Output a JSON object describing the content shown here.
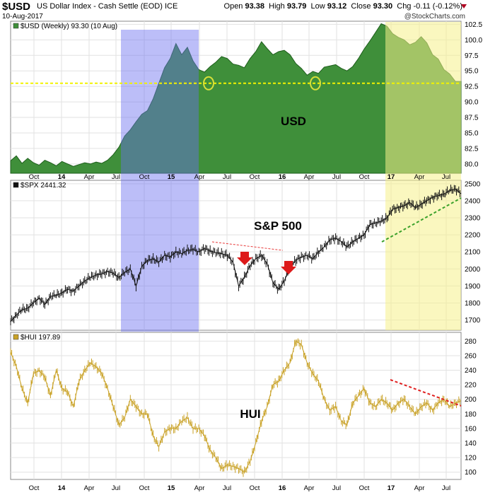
{
  "header": {
    "symbol": "$USD",
    "description": "US Dollar Index - Cash Settle (EOD) ICE",
    "date": "10-Aug-2017",
    "open_label": "Open",
    "open": "93.38",
    "high_label": "High",
    "high": "93.79",
    "low_label": "Low",
    "low": "93.12",
    "close_label": "Close",
    "close": "93.30",
    "chg_label": "Chg",
    "chg": "-0.11 (-0.12%)",
    "brand": "@StockCharts.com",
    "chg_color": "#b00020"
  },
  "chart_data": [
    {
      "type": "area",
      "panel_legend": "$USD (Weekly) 93.30 (10 Aug)",
      "annotation": "USD",
      "ylim": [
        78.5,
        103
      ],
      "y_ticks": [
        "102.5",
        "100.0",
        "97.5",
        "95.0",
        "92.5",
        "90.0",
        "87.5",
        "85.0",
        "82.5",
        "80.0"
      ],
      "y_tick_values": [
        102.5,
        100.0,
        97.5,
        95.0,
        92.5,
        90.0,
        87.5,
        85.0,
        82.5,
        80.0
      ],
      "x_ticks": [
        "Oct",
        "14",
        "Apr",
        "Jul",
        "Oct",
        "15",
        "Apr",
        "Jul",
        "Oct",
        "16",
        "Apr",
        "Jul",
        "Oct",
        "17",
        "Apr",
        "Jul"
      ],
      "support_level": 93.0,
      "highlights": [
        "Jul 2014 - Apr 2015",
        "Dec 2016 - Aug 2017"
      ],
      "circled_lows": [
        "May 2015",
        "May 2016"
      ],
      "series": [
        {
          "name": "USD weekly close",
          "x": [
            0,
            3,
            6,
            9,
            12,
            15,
            18,
            21,
            24,
            27,
            30,
            33,
            36,
            39,
            42,
            45,
            48,
            51,
            54,
            57,
            60,
            63,
            66,
            69,
            72,
            75,
            78,
            81,
            84,
            87,
            90,
            93,
            96,
            99,
            102,
            105,
            108,
            111,
            114,
            117,
            120,
            123,
            126,
            129,
            132,
            135,
            138,
            141,
            144,
            147,
            150,
            153,
            156,
            159,
            162,
            165,
            168,
            171,
            174,
            177,
            180,
            183,
            186,
            189,
            192,
            195,
            198,
            201,
            204,
            207,
            210,
            213,
            216,
            219,
            222,
            225,
            228,
            231,
            234,
            237
          ],
          "values": [
            80.5,
            81.3,
            80.1,
            80.9,
            80.2,
            79.8,
            80.6,
            80.2,
            79.7,
            80.4,
            80.0,
            79.6,
            79.9,
            80.2,
            80.0,
            80.3,
            80.1,
            80.6,
            81.5,
            82.7,
            84.5,
            85.5,
            86.8,
            88.0,
            88.6,
            90.5,
            93.0,
            95.5,
            97.0,
            99.4,
            97.6,
            98.8,
            96.6,
            95.2,
            94.8,
            95.7,
            96.4,
            97.3,
            97.0,
            96.1,
            95.9,
            95.5,
            97.0,
            98.1,
            99.7,
            98.6,
            97.6,
            98.1,
            98.3,
            97.6,
            96.2,
            95.4,
            94.3,
            94.9,
            94.6,
            95.6,
            95.8,
            96.0,
            95.4,
            95.0,
            95.7,
            97.0,
            98.5,
            99.8,
            101.2,
            102.6,
            102.2,
            101.0,
            100.4,
            100.0,
            99.2,
            99.6,
            100.5,
            99.5,
            97.6,
            96.9,
            95.2,
            94.5,
            93.3,
            93.3
          ]
        }
      ]
    },
    {
      "type": "line",
      "panel_legend": "$SPX 2441.32",
      "annotation": "S&P 500",
      "ylim": [
        1640,
        2520
      ],
      "y_ticks": [
        "2500",
        "2400",
        "2300",
        "2200",
        "2100",
        "2000",
        "1900",
        "1800",
        "1700"
      ],
      "y_tick_values": [
        2500,
        2400,
        2300,
        2200,
        2100,
        2000,
        1900,
        1800,
        1700
      ],
      "series": [
        {
          "name": "S&P 500",
          "x": [
            0,
            3,
            6,
            9,
            12,
            15,
            18,
            21,
            24,
            27,
            30,
            33,
            36,
            39,
            42,
            45,
            48,
            51,
            54,
            57,
            60,
            63,
            66,
            69,
            72,
            75,
            78,
            81,
            84,
            87,
            90,
            93,
            96,
            99,
            102,
            105,
            108,
            111,
            114,
            117,
            120,
            123,
            126,
            129,
            132,
            135,
            138,
            141,
            144,
            147,
            150,
            153,
            156,
            159,
            162,
            165,
            168,
            171,
            174,
            177,
            180,
            183,
            186,
            189,
            192,
            195,
            198,
            201,
            204,
            207,
            210,
            213,
            216,
            219,
            222,
            225,
            228,
            231,
            234,
            237
          ],
          "values": [
            1690,
            1730,
            1760,
            1770,
            1800,
            1830,
            1790,
            1840,
            1845,
            1860,
            1880,
            1870,
            1900,
            1930,
            1950,
            1965,
            1970,
            1985,
            1975,
            1950,
            1980,
            2000,
            1900,
            2015,
            2050,
            2060,
            2040,
            2080,
            2070,
            2100,
            2090,
            2110,
            2115,
            2100,
            2120,
            2105,
            2095,
            2090,
            2080,
            2040,
            1900,
            1950,
            2020,
            2060,
            2080,
            2030,
            1920,
            1880,
            1930,
            2010,
            2050,
            2070,
            2080,
            2060,
            2100,
            2130,
            2170,
            2180,
            2160,
            2130,
            2160,
            2180,
            2200,
            2260,
            2270,
            2280,
            2300,
            2350,
            2360,
            2370,
            2390,
            2360,
            2380,
            2400,
            2420,
            2430,
            2440,
            2460,
            2470,
            2441
          ]
        }
      ]
    },
    {
      "type": "line",
      "panel_legend": "$HUI 197.89",
      "annotation": "HUI",
      "ylim": [
        90,
        292
      ],
      "y_ticks": [
        "280",
        "260",
        "240",
        "220",
        "200",
        "180",
        "160",
        "140",
        "120",
        "100"
      ],
      "y_tick_values": [
        280,
        260,
        240,
        220,
        200,
        180,
        160,
        140,
        120,
        100
      ],
      "x_ticks": [
        "Oct",
        "14",
        "Apr",
        "Jul",
        "Oct",
        "15",
        "Apr",
        "Jul",
        "Oct",
        "16",
        "Apr",
        "Jul",
        "Oct",
        "17",
        "Apr",
        "Jul"
      ],
      "series": [
        {
          "name": "HUI",
          "x": [
            0,
            3,
            6,
            9,
            12,
            15,
            18,
            21,
            24,
            27,
            30,
            33,
            36,
            39,
            42,
            45,
            48,
            51,
            54,
            57,
            60,
            63,
            66,
            69,
            72,
            75,
            78,
            81,
            84,
            87,
            90,
            93,
            96,
            99,
            102,
            105,
            108,
            111,
            114,
            117,
            120,
            123,
            126,
            129,
            132,
            135,
            138,
            141,
            144,
            147,
            150,
            153,
            156,
            159,
            162,
            165,
            168,
            171,
            174,
            177,
            180,
            183,
            186,
            189,
            192,
            195,
            198,
            201,
            204,
            207,
            210,
            213,
            216,
            219,
            222,
            225,
            228,
            231,
            234,
            237
          ],
          "values": [
            265,
            245,
            215,
            195,
            235,
            240,
            230,
            205,
            240,
            215,
            210,
            190,
            225,
            240,
            250,
            245,
            235,
            215,
            190,
            165,
            175,
            200,
            190,
            180,
            180,
            150,
            135,
            155,
            160,
            160,
            170,
            175,
            160,
            160,
            150,
            130,
            120,
            105,
            110,
            108,
            105,
            100,
            115,
            140,
            170,
            190,
            220,
            225,
            240,
            250,
            280,
            275,
            250,
            235,
            225,
            200,
            185,
            190,
            170,
            165,
            195,
            205,
            215,
            195,
            190,
            200,
            195,
            185,
            195,
            200,
            190,
            180,
            190,
            195,
            185,
            195,
            200,
            190,
            195,
            198
          ]
        }
      ]
    }
  ]
}
